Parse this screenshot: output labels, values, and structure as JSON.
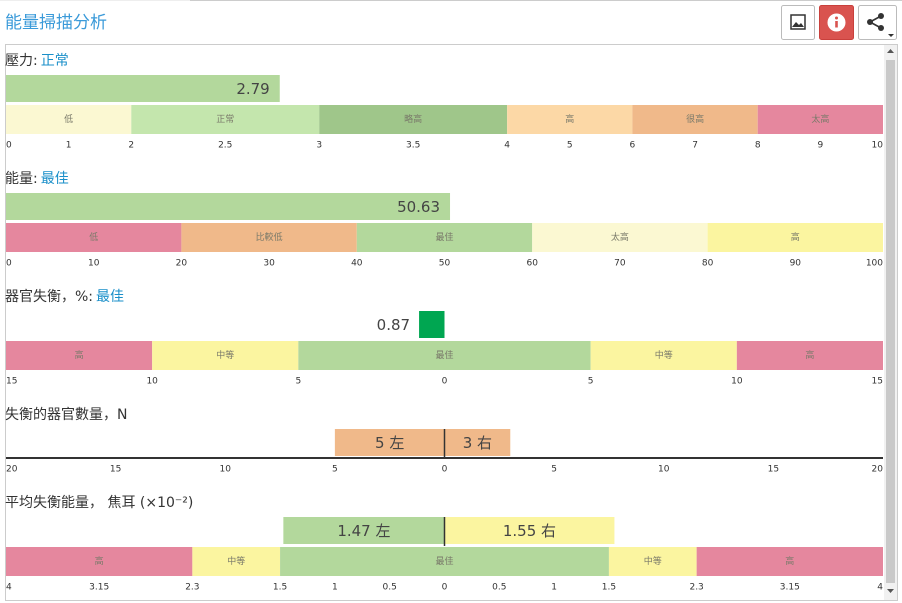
{
  "header": {
    "title": "能量掃描分析"
  },
  "panels": [
    {
      "label": "壓力:",
      "status": "正常",
      "xlim": [
        0,
        10
      ],
      "xticks": [
        0,
        1,
        2,
        2.5,
        3,
        3.5,
        4,
        5,
        6,
        7,
        8,
        9,
        10
      ],
      "zones": [
        {
          "name": "低",
          "from": 0,
          "to": 2,
          "color": "#fbf8d2"
        },
        {
          "name": "正常",
          "from": 2,
          "to": 3,
          "color": "#c4e6ad"
        },
        {
          "name": "略高",
          "from": 3,
          "to": 4,
          "color": "#9fc68a"
        },
        {
          "name": "高",
          "from": 4,
          "to": 6,
          "color": "#fcd8a6"
        },
        {
          "name": "很高",
          "from": 6,
          "to": 8,
          "color": "#f0b98a"
        },
        {
          "name": "太高",
          "from": 8,
          "to": 10,
          "color": "#e5879e"
        }
      ],
      "bars": [
        {
          "value": 2.79,
          "color": "#b3d89c"
        }
      ]
    },
    {
      "label": "能量:",
      "status": "最佳",
      "xlim": [
        0,
        100
      ],
      "xticks": [
        0,
        10,
        20,
        30,
        40,
        50,
        60,
        70,
        80,
        90,
        100
      ],
      "zones": [
        {
          "name": "低",
          "from": 0,
          "to": 20,
          "color": "#e5879e"
        },
        {
          "name": "比較低",
          "from": 20,
          "to": 40,
          "color": "#f0b98a"
        },
        {
          "name": "最佳",
          "from": 40,
          "to": 60,
          "color": "#b3d89c"
        },
        {
          "name": "太高",
          "from": 60,
          "to": 80,
          "color": "#fbf8d2"
        },
        {
          "name": "高",
          "from": 80,
          "to": 100,
          "color": "#fbf5a0"
        }
      ],
      "bars": [
        {
          "value": 50.63,
          "color": "#b3d89c"
        }
      ]
    },
    {
      "label": "器官失衡，%:",
      "status": "最佳",
      "xlim": [
        -15,
        15
      ],
      "xticks": [
        {
          "value": -15,
          "label": "15"
        },
        {
          "value": -10,
          "label": "10"
        },
        {
          "value": -5,
          "label": "5"
        },
        0,
        5,
        10,
        15
      ],
      "zones": [
        {
          "name": "高",
          "from": -15,
          "to": -10,
          "color": "#e5879e"
        },
        {
          "name": "中等",
          "from": -10,
          "to": -5,
          "color": "#fbf5a0"
        },
        {
          "name": "最佳",
          "from": -5,
          "to": 5,
          "color": "#b3d89c"
        },
        {
          "name": "中等",
          "from": 5,
          "to": 10,
          "color": "#fbf5a0"
        },
        {
          "name": "高",
          "from": 10,
          "to": 15,
          "color": "#e5879e"
        }
      ],
      "bars": [
        {
          "value": -0.87,
          "value_label": "0.87",
          "color": "#00a651"
        }
      ]
    },
    {
      "label": "失衡的器官數量，N",
      "xlim": [
        -20,
        20
      ],
      "xticks": [
        {
          "value": -20,
          "label": "20"
        },
        {
          "value": -15,
          "label": "15"
        },
        {
          "value": -10,
          "label": "10"
        },
        {
          "value": -5,
          "label": "5"
        },
        0,
        5,
        10,
        15,
        20
      ],
      "bars": [
        {
          "value": -5,
          "value_label": "5 左",
          "color": "#f0b98a"
        },
        {
          "value": 3,
          "value_label": "3 右",
          "color": "#f0b98a"
        }
      ]
    },
    {
      "label": "平均失衡能量， 焦耳 (×10⁻²)",
      "xlim": [
        -4,
        4
      ],
      "xticks": [
        {
          "value": -4,
          "label": "4"
        },
        {
          "value": -3.15,
          "label": "3.15"
        },
        {
          "value": -2.3,
          "label": "2.3"
        },
        {
          "value": -1.5,
          "label": "1.5"
        },
        {
          "value": -1,
          "label": "1"
        },
        {
          "value": -0.5,
          "label": "0.5"
        },
        0,
        0.5,
        1,
        1.5,
        2.3,
        3.15,
        4
      ],
      "zones": [
        {
          "name": "高",
          "from": -4,
          "to": -2.3,
          "color": "#e5879e"
        },
        {
          "name": "中等",
          "from": -2.3,
          "to": -1.5,
          "color": "#fbf5a0"
        },
        {
          "name": "最佳",
          "from": -1.5,
          "to": 1.5,
          "color": "#b3d89c"
        },
        {
          "name": "中等",
          "from": 1.5,
          "to": 2.3,
          "color": "#fbf5a0"
        },
        {
          "name": "高",
          "from": 2.3,
          "to": 4,
          "color": "#e5879e"
        }
      ],
      "bars": [
        {
          "value": -1.47,
          "value_label": "1.47 左",
          "color": "#b3d89c"
        },
        {
          "value": 1.55,
          "value_label": "1.55 右",
          "color": "#fbf5a0"
        }
      ]
    }
  ]
}
